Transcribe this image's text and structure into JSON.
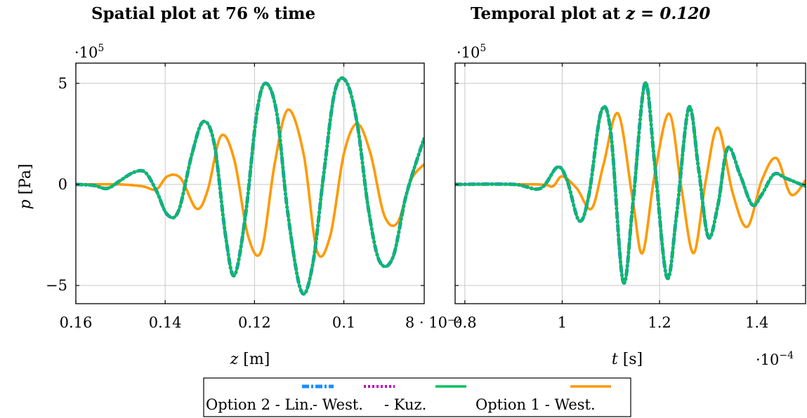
{
  "chart_data": [
    {
      "type": "line",
      "title_prefix": "Spatial plot at ",
      "title_value": "76 % time",
      "xlabel_var": "z",
      "xlabel_unit": "[m]",
      "ylabel_var": "p",
      "ylabel_unit": "[Pa]",
      "y_multiplier": "·10",
      "y_multiplier_exp": "5",
      "x_multiplier": "",
      "xlim": [
        0.16,
        0.082
      ],
      "ylim": [
        -5.9,
        6.0
      ],
      "x_ticks": [
        {
          "value": 0.16,
          "label": "0.16"
        },
        {
          "value": 0.14,
          "label": "0.14"
        },
        {
          "value": 0.12,
          "label": "0.12"
        },
        {
          "value": 0.1,
          "label": "0.1"
        },
        {
          "value": 0.08,
          "label": "8 · 10⁻²"
        }
      ],
      "y_ticks": [
        {
          "value": 5,
          "label": "5"
        },
        {
          "value": 0,
          "label": "0"
        },
        {
          "value": -5,
          "label": "−5"
        }
      ],
      "grid": true,
      "series": [
        {
          "legend_index": 0,
          "color": "#1a8cff",
          "style": "dashdot",
          "x": [
            0.16,
            0.156,
            0.153,
            0.15,
            0.147,
            0.1445,
            0.142,
            0.1395,
            0.137,
            0.134,
            0.1315,
            0.129,
            0.1265,
            0.1245,
            0.122,
            0.1195,
            0.1175,
            0.115,
            0.1125,
            0.1095,
            0.107,
            0.1045,
            0.102,
            0.0995,
            0.097,
            0.0945,
            0.092,
            0.089,
            0.086,
            0.082
          ],
          "y": [
            0,
            -0.05,
            -0.2,
            0.2,
            0.6,
            0.6,
            -0.3,
            -1.5,
            -1.3,
            1.5,
            3.1,
            2.0,
            -2.5,
            -4.5,
            -1.5,
            3.5,
            5.0,
            3.5,
            -1.5,
            -5.3,
            -4.0,
            0.5,
            4.6,
            5.1,
            3.0,
            -1.2,
            -3.8,
            -3.6,
            -0.5,
            2.3
          ]
        },
        {
          "legend_index": 1,
          "color": "#c000c0",
          "style": "dotted",
          "x": [
            0.16,
            0.156,
            0.153,
            0.15,
            0.147,
            0.1445,
            0.142,
            0.1395,
            0.137,
            0.134,
            0.1315,
            0.129,
            0.1265,
            0.1245,
            0.122,
            0.1195,
            0.1175,
            0.115,
            0.1125,
            0.1095,
            0.107,
            0.1045,
            0.102,
            0.0995,
            0.097,
            0.0945,
            0.092,
            0.089,
            0.086,
            0.082
          ],
          "y": [
            0,
            -0.05,
            -0.2,
            0.2,
            0.6,
            0.6,
            -0.3,
            -1.5,
            -1.3,
            1.5,
            3.1,
            2.0,
            -2.5,
            -4.5,
            -1.5,
            3.5,
            5.0,
            3.5,
            -1.5,
            -5.3,
            -4.0,
            0.5,
            4.6,
            5.1,
            3.0,
            -1.2,
            -3.8,
            -3.6,
            -0.5,
            2.3
          ]
        },
        {
          "legend_index": 2,
          "color": "#00c060",
          "style": "solid",
          "x": [
            0.16,
            0.156,
            0.153,
            0.15,
            0.147,
            0.1445,
            0.142,
            0.1395,
            0.137,
            0.134,
            0.1315,
            0.129,
            0.1265,
            0.1245,
            0.122,
            0.1195,
            0.1175,
            0.115,
            0.1125,
            0.1095,
            0.107,
            0.1045,
            0.102,
            0.0995,
            0.097,
            0.0945,
            0.092,
            0.089,
            0.086,
            0.082
          ],
          "y": [
            0,
            -0.05,
            -0.2,
            0.2,
            0.6,
            0.6,
            -0.3,
            -1.5,
            -1.3,
            1.5,
            3.1,
            2.0,
            -2.5,
            -4.5,
            -1.5,
            3.5,
            5.0,
            3.5,
            -1.5,
            -5.3,
            -4.0,
            0.5,
            4.6,
            5.1,
            3.0,
            -1.2,
            -3.8,
            -3.6,
            -0.5,
            2.3
          ]
        },
        {
          "legend_index": 3,
          "color": "#ff9900",
          "style": "solid",
          "x": [
            0.16,
            0.15,
            0.145,
            0.142,
            0.1395,
            0.1365,
            0.133,
            0.1305,
            0.1275,
            0.1245,
            0.1215,
            0.1185,
            0.1155,
            0.1125,
            0.109,
            0.106,
            0.103,
            0.1,
            0.097,
            0.094,
            0.091,
            0.088,
            0.085,
            0.082
          ],
          "y": [
            0,
            0,
            -0.1,
            -0.25,
            0.4,
            0.3,
            -1.2,
            -0.3,
            2.4,
            1.2,
            -2.5,
            -3.3,
            1.0,
            3.7,
            1.5,
            -3.3,
            -2.5,
            1.5,
            3.0,
            1.5,
            -1.5,
            -1.9,
            0.2,
            1.0
          ]
        }
      ]
    },
    {
      "type": "line",
      "title_prefix": "Temporal plot at ",
      "title_value": "z = 0.120",
      "xlabel_var": "t",
      "xlabel_unit": "[s]",
      "ylabel_var": "",
      "ylabel_unit": "",
      "y_multiplier": "·10",
      "y_multiplier_exp": "5",
      "x_multiplier": "·10",
      "x_multiplier_exp": "−4",
      "xlim": [
        0.78,
        1.5
      ],
      "ylim": [
        -5.9,
        6.0
      ],
      "x_ticks": [
        {
          "value": 0.8,
          "label": "0.8"
        },
        {
          "value": 1.0,
          "label": "1"
        },
        {
          "value": 1.2,
          "label": "1.2"
        },
        {
          "value": 1.4,
          "label": "1.4"
        }
      ],
      "y_ticks": [
        {
          "value": 5,
          "label": ""
        },
        {
          "value": 0,
          "label": ""
        },
        {
          "value": -5,
          "label": ""
        }
      ],
      "grid": true,
      "series": [
        {
          "legend_index": 0,
          "color": "#1a8cff",
          "style": "dashdot",
          "x": [
            0.78,
            0.9,
            0.955,
            0.99,
            1.01,
            1.035,
            1.055,
            1.08,
            1.1,
            1.125,
            1.145,
            1.17,
            1.19,
            1.215,
            1.235,
            1.26,
            1.28,
            1.3,
            1.32,
            1.34,
            1.365,
            1.39,
            1.41,
            1.435,
            1.46,
            1.5
          ],
          "y": [
            0,
            0,
            -0.2,
            0.85,
            0.2,
            -1.8,
            -0.5,
            3.6,
            2.5,
            -4.8,
            -1.0,
            5.0,
            1.0,
            -4.6,
            -1.5,
            3.8,
            0.8,
            -2.6,
            -1.0,
            1.8,
            0.5,
            -1.0,
            -0.5,
            0.5,
            0.3,
            -0.1
          ]
        },
        {
          "legend_index": 1,
          "color": "#c000c0",
          "style": "dotted",
          "x": [
            0.78,
            0.9,
            0.955,
            0.99,
            1.01,
            1.035,
            1.055,
            1.08,
            1.1,
            1.125,
            1.145,
            1.17,
            1.19,
            1.215,
            1.235,
            1.26,
            1.28,
            1.3,
            1.32,
            1.34,
            1.365,
            1.39,
            1.41,
            1.435,
            1.46,
            1.5
          ],
          "y": [
            0,
            0,
            -0.2,
            0.85,
            0.2,
            -1.8,
            -0.5,
            3.6,
            2.5,
            -4.8,
            -1.0,
            5.0,
            1.0,
            -4.6,
            -1.5,
            3.8,
            0.8,
            -2.6,
            -1.0,
            1.8,
            0.5,
            -1.0,
            -0.5,
            0.5,
            0.3,
            -0.1
          ]
        },
        {
          "legend_index": 2,
          "color": "#00c060",
          "style": "solid",
          "x": [
            0.78,
            0.9,
            0.955,
            0.99,
            1.01,
            1.035,
            1.055,
            1.08,
            1.1,
            1.125,
            1.145,
            1.17,
            1.19,
            1.215,
            1.235,
            1.26,
            1.28,
            1.3,
            1.32,
            1.34,
            1.365,
            1.39,
            1.41,
            1.435,
            1.46,
            1.5
          ],
          "y": [
            0,
            0,
            -0.2,
            0.85,
            0.2,
            -1.8,
            -0.5,
            3.6,
            2.5,
            -4.8,
            -1.0,
            5.0,
            1.0,
            -4.6,
            -1.5,
            3.8,
            0.8,
            -2.6,
            -1.0,
            1.8,
            0.5,
            -1.0,
            -0.5,
            0.5,
            0.3,
            -0.1
          ]
        },
        {
          "legend_index": 3,
          "color": "#ff9900",
          "style": "solid",
          "x": [
            0.78,
            0.95,
            0.98,
            1.0,
            1.03,
            1.06,
            1.085,
            1.115,
            1.145,
            1.165,
            1.19,
            1.22,
            1.245,
            1.27,
            1.295,
            1.32,
            1.35,
            1.38,
            1.41,
            1.44,
            1.47,
            1.5
          ],
          "y": [
            0,
            0,
            -0.1,
            0.4,
            -0.2,
            -1.2,
            1.0,
            3.5,
            -0.8,
            -3.4,
            0.5,
            3.5,
            -0.2,
            -3.4,
            0.2,
            2.8,
            -0.4,
            -2.1,
            0.2,
            1.3,
            -0.5,
            0.2
          ]
        }
      ]
    }
  ],
  "legend": {
    "items": [
      {
        "label": "Option 2 - Lin.",
        "color": "#1a8cff",
        "style": "dashdot"
      },
      {
        "label": " - West.",
        "color": "#c000c0",
        "style": "dotted"
      },
      {
        "label": " - Kuz.",
        "color": "#00c060",
        "style": "solid"
      },
      {
        "label": "Option 1 - West.",
        "color": "#ff9900",
        "style": "solid"
      }
    ]
  }
}
